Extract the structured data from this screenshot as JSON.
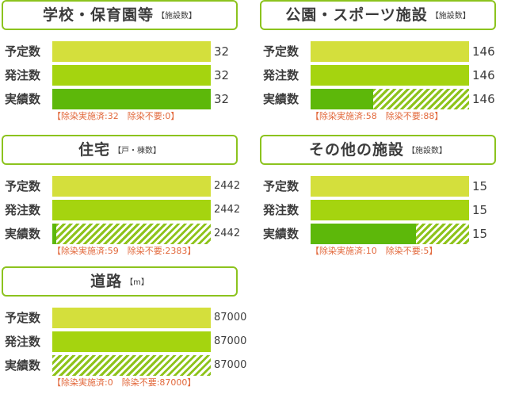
{
  "colors": {
    "planned": "#d4df3c",
    "ordered": "#a5d40f",
    "done": "#5db80a",
    "hatch": "#8ec31b",
    "border": "#8cc31e",
    "note": "#e2683b"
  },
  "chart_data": [
    {
      "type": "bar",
      "title": "学校・保育園等",
      "unit": "【施設数】",
      "categories": [
        "予定数",
        "発注数",
        "実績数"
      ],
      "values": [
        32,
        32,
        32
      ],
      "value_labels": [
        "32",
        "32",
        "32"
      ],
      "completed": {
        "decontaminated": 32,
        "not_required": 0
      },
      "note": "【除染実施済:32　除染不要:0】"
    },
    {
      "type": "bar",
      "title": "公園・スポーツ施設",
      "unit": "【施設数】",
      "categories": [
        "予定数",
        "発注数",
        "実績数"
      ],
      "values": [
        146,
        146,
        146
      ],
      "value_labels": [
        "146",
        "146",
        "146"
      ],
      "completed": {
        "decontaminated": 58,
        "not_required": 88
      },
      "note": "【除染実施済:58　除染不要:88】"
    },
    {
      "type": "bar",
      "title": "住宅",
      "unit": "【戸・棟数】",
      "categories": [
        "予定数",
        "発注数",
        "実績数"
      ],
      "values": [
        2442,
        2442,
        2442
      ],
      "value_labels": [
        "2442",
        "2442",
        "2442"
      ],
      "completed": {
        "decontaminated": 59,
        "not_required": 2383
      },
      "note": "【除染実施済:59　除染不要:2383】"
    },
    {
      "type": "bar",
      "title": "その他の施設",
      "unit": "【施設数】",
      "categories": [
        "予定数",
        "発注数",
        "実績数"
      ],
      "values": [
        15,
        15,
        15
      ],
      "value_labels": [
        "15",
        "15",
        "15"
      ],
      "completed": {
        "decontaminated": 10,
        "not_required": 5
      },
      "note": "【除染実施済:10　除染不要:5】"
    },
    {
      "type": "bar",
      "title": "道路",
      "unit": "【m】",
      "categories": [
        "予定数",
        "発注数",
        "実績数"
      ],
      "values": [
        87000,
        87000,
        87000
      ],
      "value_labels": [
        "87000",
        "87000",
        "87000"
      ],
      "completed": {
        "decontaminated": 0,
        "not_required": 87000
      },
      "note": "【除染実施済:0　除染不要:87000】"
    }
  ]
}
